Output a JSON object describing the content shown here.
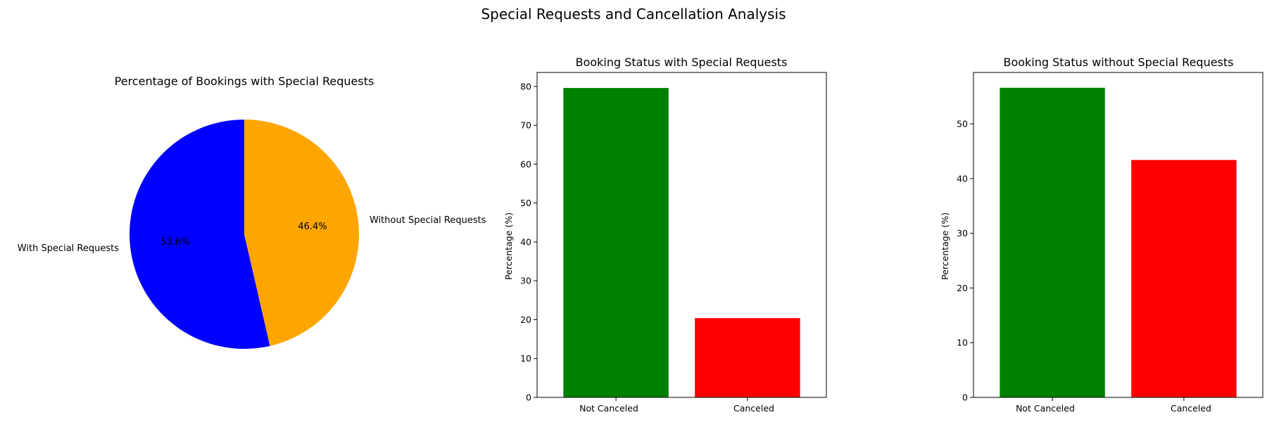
{
  "figure_title": "Special Requests and Cancellation Analysis",
  "chart_data": [
    {
      "type": "pie",
      "title": "Percentage of Bookings with Special Requests",
      "labels": [
        "With Special Requests",
        "Without Special Requests"
      ],
      "values": [
        53.6,
        46.4
      ],
      "value_labels": [
        "53.6%",
        "46.4%"
      ],
      "colors": [
        "#0000ff",
        "#ffa500"
      ],
      "start_angle_deg": 90,
      "direction": "counterclockwise"
    },
    {
      "type": "bar",
      "title": "Booking Status with Special Requests",
      "categories": [
        "Not Canceled",
        "Canceled"
      ],
      "values": [
        79.6,
        20.4
      ],
      "colors": [
        "#008000",
        "#ff0000"
      ],
      "xlabel": "",
      "ylabel": "Percentage (%)",
      "ylim": [
        0,
        83.6
      ],
      "yticks": [
        0,
        10,
        20,
        30,
        40,
        50,
        60,
        70,
        80
      ],
      "grid": false
    },
    {
      "type": "bar",
      "title": "Booking Status without Special Requests",
      "categories": [
        "Not Canceled",
        "Canceled"
      ],
      "values": [
        56.6,
        43.4
      ],
      "colors": [
        "#008000",
        "#ff0000"
      ],
      "xlabel": "",
      "ylabel": "Percentage (%)",
      "ylim": [
        0,
        59.4
      ],
      "yticks": [
        0,
        10,
        20,
        30,
        40,
        50
      ],
      "grid": false
    }
  ]
}
